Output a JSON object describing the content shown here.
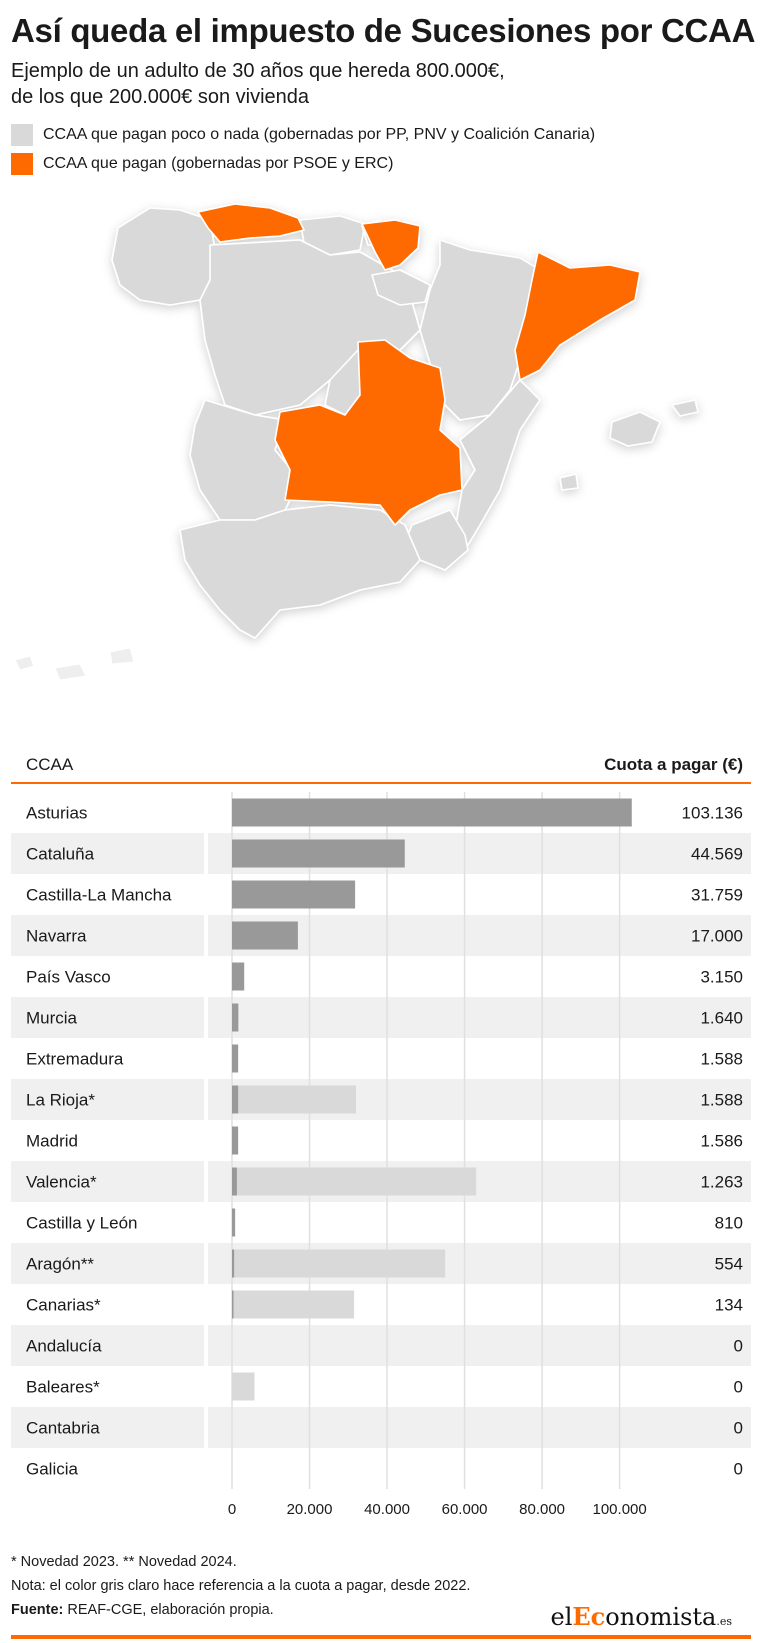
{
  "title": "Así queda el impuesto de Sucesiones por CCAA",
  "subtitle_line1": "Ejemplo de un adulto de 30 años que hereda 800.000€,",
  "subtitle_line2": "de los que 200.000€ son vivienda",
  "legend": [
    {
      "label": "CCAA que pagan poco o nada (gobernadas por PP, PNV y Coalición Canaria)",
      "color": "#d9d9d9"
    },
    {
      "label": "CCAA que pagan (gobernadas por PSOE y ERC)",
      "color": "#ff6a00"
    }
  ],
  "colors": {
    "orange": "#ff6a00",
    "map_gray": "#d9d9d9",
    "bar_dark": "#999999",
    "bar_light": "#d9d9d9",
    "band": "#f0f0f0",
    "grid": "#e0e0e0"
  },
  "table": {
    "col_left": "CCAA",
    "col_right": "Cuota a pagar (€)"
  },
  "chart_data": {
    "type": "bar",
    "orientation": "horizontal",
    "xlabel": "",
    "ylabel": "",
    "xlim": [
      0,
      105000
    ],
    "x_ticks": [
      0,
      20000,
      40000,
      60000,
      80000,
      100000
    ],
    "x_tick_labels": [
      "0",
      "20.000",
      "40.000",
      "60.000",
      "80.000",
      "100.000"
    ],
    "categories": [
      "Asturias",
      "Cataluña",
      "Castilla-La Mancha",
      "Navarra",
      "País Vasco",
      "Murcia",
      "Extremadura",
      "La Rioja*",
      "Madrid",
      "Valencia*",
      "Castilla y León",
      "Aragón**",
      "Canarias*",
      "Andalucía",
      "Baleares*",
      "Cantabria",
      "Galicia"
    ],
    "value_labels": [
      "103.136",
      "44.569",
      "31.759",
      "17.000",
      "3.150",
      "1.640",
      "1.588",
      "1.588",
      "1.586",
      "1.263",
      "810",
      "554",
      "134",
      "0",
      "0",
      "0",
      "0"
    ],
    "series": [
      {
        "values": [
          103136,
          44569,
          31759,
          17000,
          3150,
          1640,
          1588,
          1588,
          1586,
          1263,
          810,
          554,
          134,
          0,
          0,
          0,
          0
        ]
      },
      {
        "values": [
          null,
          null,
          null,
          null,
          null,
          null,
          null,
          32000,
          null,
          63000,
          null,
          55000,
          31500,
          null,
          5800,
          null,
          null
        ]
      }
    ]
  },
  "footnotes": {
    "line1": "* Novedad 2023. ** Novedad 2024.",
    "line2": "Nota: el color gris claro hace referencia a la cuota a pagar, desde 2022.",
    "source_label": "Fuente:",
    "source_text": " REAF-CGE, elaboración propia."
  },
  "logo": {
    "prefix": "el",
    "highlight": "Ec",
    "rest": "onomista",
    "suffix": ".es"
  }
}
